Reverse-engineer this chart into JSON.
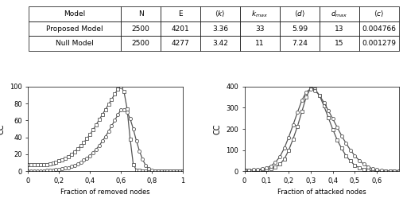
{
  "table_headers": [
    "Model",
    "N",
    "E",
    "$\\langle k \\rangle$",
    "$k_{max}$",
    "$\\langle d \\rangle$",
    "$d_{max}$",
    "$\\langle c \\rangle$"
  ],
  "table_rows": [
    [
      "Proposed Model",
      "2500",
      "4201",
      "3.36",
      "33",
      "5.99",
      "13",
      "0.004766"
    ],
    [
      "Null Model",
      "2500",
      "4277",
      "3.42",
      "11",
      "7.24",
      "15",
      "0.001279"
    ]
  ],
  "left_plot": {
    "xlabel": "Fraction of removed nodes",
    "ylabel": "CC",
    "xlim": [
      0,
      1
    ],
    "ylim": [
      0,
      100
    ],
    "yticks": [
      0,
      20,
      40,
      60,
      80,
      100
    ],
    "xticks": [
      0,
      0.2,
      0.4,
      0.6,
      0.8,
      1.0
    ],
    "xticklabels": [
      "0",
      "0,2",
      "0,4",
      "0,6",
      "0,8",
      "1"
    ],
    "curve1_x": [
      0.0,
      0.02,
      0.04,
      0.06,
      0.08,
      0.1,
      0.12,
      0.14,
      0.16,
      0.18,
      0.2,
      0.22,
      0.24,
      0.26,
      0.28,
      0.3,
      0.32,
      0.34,
      0.36,
      0.38,
      0.4,
      0.42,
      0.44,
      0.46,
      0.48,
      0.5,
      0.52,
      0.54,
      0.56,
      0.58,
      0.6,
      0.62,
      0.64,
      0.66,
      0.68,
      0.7,
      0.72,
      0.74,
      0.76,
      0.78,
      0.8,
      0.82,
      0.84,
      0.86,
      0.88,
      0.9,
      0.92,
      0.94,
      0.96,
      0.98,
      1.0
    ],
    "curve1_y": [
      8.0,
      7.8,
      7.7,
      7.6,
      7.5,
      7.5,
      7.8,
      8.5,
      9.5,
      10.5,
      12.0,
      13.5,
      15.5,
      17.5,
      20.0,
      23.0,
      26.5,
      30.0,
      34.0,
      38.5,
      43.5,
      49.0,
      55.0,
      61.0,
      67.0,
      73.0,
      79.0,
      85.0,
      91.0,
      97.0,
      100.0,
      94.0,
      74.0,
      38.0,
      8.0,
      1.5,
      0.8,
      0.3,
      0.1,
      0.05,
      0.02,
      0.01,
      0.005,
      0.002,
      0.001,
      0.0005,
      0.0002,
      0.0001,
      5e-05,
      2e-05,
      0.0
    ],
    "curve2_x": [
      0.0,
      0.02,
      0.04,
      0.06,
      0.08,
      0.1,
      0.12,
      0.14,
      0.16,
      0.18,
      0.2,
      0.22,
      0.24,
      0.26,
      0.28,
      0.3,
      0.32,
      0.34,
      0.36,
      0.38,
      0.4,
      0.42,
      0.44,
      0.46,
      0.48,
      0.5,
      0.52,
      0.54,
      0.56,
      0.58,
      0.6,
      0.62,
      0.64,
      0.66,
      0.68,
      0.7,
      0.72,
      0.74,
      0.76,
      0.78,
      0.8,
      0.82,
      0.84,
      0.86,
      0.88,
      0.9,
      0.92,
      0.94,
      0.96,
      0.98,
      1.0
    ],
    "curve2_y": [
      0.2,
      0.2,
      0.3,
      0.4,
      0.5,
      0.6,
      0.8,
      1.0,
      1.3,
      1.7,
      2.2,
      2.8,
      3.5,
      4.4,
      5.5,
      6.8,
      8.5,
      10.5,
      13.0,
      15.5,
      18.5,
      22.0,
      26.0,
      30.5,
      35.5,
      41.0,
      47.0,
      53.5,
      60.0,
      66.5,
      72.5,
      73.0,
      70.0,
      62.0,
      50.0,
      36.0,
      24.0,
      14.0,
      7.0,
      3.0,
      1.0,
      0.4,
      0.15,
      0.05,
      0.02,
      0.007,
      0.003,
      0.001,
      0.0005,
      0.0002,
      0.0
    ]
  },
  "right_plot": {
    "xlabel": "Fraction of attacked nodes",
    "ylabel": "CC",
    "xlim": [
      0,
      0.7
    ],
    "ylim": [
      0,
      400
    ],
    "yticks": [
      0,
      100,
      200,
      300,
      400
    ],
    "xticks": [
      0,
      0.1,
      0.2,
      0.3,
      0.4,
      0.5,
      0.6
    ],
    "xticklabels": [
      "0",
      "0,1",
      "0,2",
      "0,3",
      "0,4",
      "0,5",
      "0,6"
    ],
    "curve1_x": [
      0.0,
      0.02,
      0.04,
      0.06,
      0.08,
      0.1,
      0.12,
      0.14,
      0.16,
      0.18,
      0.2,
      0.22,
      0.24,
      0.26,
      0.28,
      0.3,
      0.32,
      0.34,
      0.36,
      0.38,
      0.4,
      0.42,
      0.44,
      0.46,
      0.48,
      0.5,
      0.52,
      0.54,
      0.56,
      0.58,
      0.6,
      0.62,
      0.64,
      0.66,
      0.68,
      0.7
    ],
    "curve1_y": [
      5.0,
      5.0,
      5.5,
      6.0,
      7.0,
      9.0,
      13.0,
      20.0,
      33.0,
      57.0,
      98.0,
      152.0,
      212.0,
      282.0,
      352.0,
      393.0,
      388.0,
      358.0,
      308.0,
      253.0,
      198.0,
      148.0,
      108.0,
      73.0,
      48.0,
      28.0,
      16.0,
      9.0,
      4.5,
      1.8,
      0.6,
      0.2,
      0.08,
      0.03,
      0.01,
      0.0
    ],
    "curve2_x": [
      0.0,
      0.02,
      0.04,
      0.06,
      0.08,
      0.1,
      0.12,
      0.14,
      0.16,
      0.18,
      0.2,
      0.22,
      0.24,
      0.26,
      0.28,
      0.3,
      0.32,
      0.34,
      0.36,
      0.38,
      0.4,
      0.42,
      0.44,
      0.46,
      0.48,
      0.5,
      0.52,
      0.54,
      0.56,
      0.58,
      0.6,
      0.62,
      0.64,
      0.66,
      0.68,
      0.7
    ],
    "curve2_y": [
      5.0,
      5.5,
      6.5,
      8.0,
      11.0,
      16.0,
      25.0,
      42.0,
      68.0,
      108.0,
      160.0,
      218.0,
      278.0,
      335.0,
      375.0,
      390.0,
      382.0,
      358.0,
      325.0,
      287.0,
      248.0,
      208.0,
      168.0,
      132.0,
      100.0,
      73.0,
      51.0,
      34.0,
      21.0,
      12.0,
      6.5,
      3.0,
      1.2,
      0.4,
      0.1,
      0.0
    ]
  },
  "line_color": "#555555",
  "marker_square": "s",
  "marker_circle": "o",
  "marker_size": 3.0,
  "linewidth": 0.9
}
